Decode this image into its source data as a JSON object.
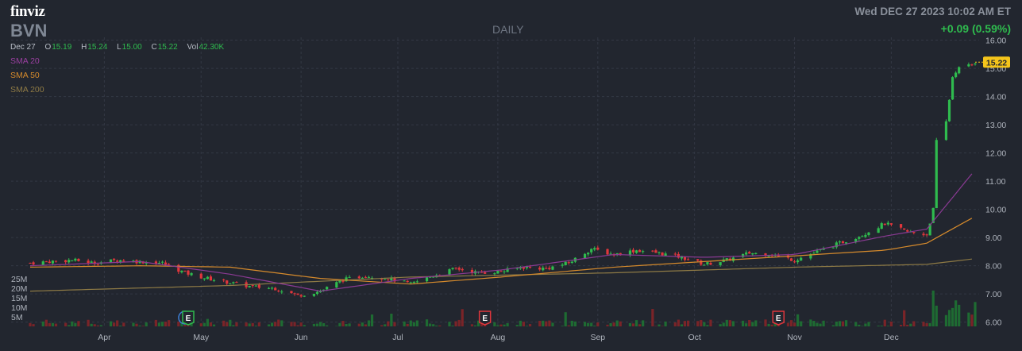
{
  "header": {
    "logo": "finviz",
    "ticker": "BVN",
    "timeframe": "DAILY",
    "datetime": "Wed DEC 27 2023 10:02 AM ET",
    "change": "+0.09 (0.59%)"
  },
  "ohlc": {
    "date": "Dec 27",
    "open_label": "O",
    "open": "15.19",
    "high_label": "H",
    "high": "15.24",
    "low_label": "L",
    "low": "15.00",
    "close_label": "C",
    "close": "15.22",
    "vol_label": "Vol",
    "vol": "42.30K"
  },
  "legend": {
    "sma20": "SMA 20",
    "sma50": "SMA 50",
    "sma200": "SMA 200"
  },
  "colors": {
    "background": "#22262f",
    "up": "#2fbb4e",
    "down": "#e0363c",
    "sma20": "#8a3a93",
    "sma50": "#d58a2c",
    "sma200": "#8e7a45",
    "price_tag": "#f5c51b"
  },
  "chart_data": {
    "type": "candlestick",
    "ticker": "BVN",
    "timeframe": "DAILY",
    "last_price": 15.22,
    "last_price_label": "15.22",
    "y_ticks": [
      "16.00",
      "15.00",
      "14.00",
      "13.00",
      "12.00",
      "11.00",
      "10.00",
      "9.00",
      "8.00",
      "7.00",
      "6.00"
    ],
    "ylim": [
      5.85,
      16.1
    ],
    "volume_ticks": [
      "25M",
      "20M",
      "15M",
      "10M",
      "5M"
    ],
    "volume_max": 25000000,
    "x_ticks": [
      "Apr",
      "May",
      "Jun",
      "Jul",
      "Aug",
      "Sep",
      "Oct",
      "Nov",
      "Dec"
    ],
    "events": [
      {
        "type": "D",
        "date": "2023-04-26"
      },
      {
        "type": "E",
        "date": "2023-04-27"
      },
      {
        "type": "E",
        "date": "2023-07-28"
      },
      {
        "type": "E",
        "date": "2023-10-27"
      }
    ],
    "close_series": [
      {
        "date": "2023-03-09",
        "close": 8.1
      },
      {
        "date": "2023-03-15",
        "close": 8.15
      },
      {
        "date": "2023-03-22",
        "close": 8.2
      },
      {
        "date": "2023-03-29",
        "close": 8.1
      },
      {
        "date": "2023-04-05",
        "close": 8.2
      },
      {
        "date": "2023-04-12",
        "close": 8.15
      },
      {
        "date": "2023-04-19",
        "close": 8.1
      },
      {
        "date": "2023-04-26",
        "close": 7.75
      },
      {
        "date": "2023-05-03",
        "close": 7.55
      },
      {
        "date": "2023-05-10",
        "close": 7.4
      },
      {
        "date": "2023-05-17",
        "close": 7.25
      },
      {
        "date": "2023-05-24",
        "close": 7.2
      },
      {
        "date": "2023-05-31",
        "close": 6.95
      },
      {
        "date": "2023-06-07",
        "close": 7.1
      },
      {
        "date": "2023-06-14",
        "close": 7.5
      },
      {
        "date": "2023-06-21",
        "close": 7.65
      },
      {
        "date": "2023-06-28",
        "close": 7.55
      },
      {
        "date": "2023-07-05",
        "close": 7.35
      },
      {
        "date": "2023-07-12",
        "close": 7.65
      },
      {
        "date": "2023-07-19",
        "close": 7.9
      },
      {
        "date": "2023-07-26",
        "close": 7.75
      },
      {
        "date": "2023-08-02",
        "close": 7.8
      },
      {
        "date": "2023-08-09",
        "close": 7.95
      },
      {
        "date": "2023-08-16",
        "close": 7.9
      },
      {
        "date": "2023-08-23",
        "close": 8.1
      },
      {
        "date": "2023-08-30",
        "close": 8.6
      },
      {
        "date": "2023-09-06",
        "close": 8.4
      },
      {
        "date": "2023-09-13",
        "close": 8.55
      },
      {
        "date": "2023-09-20",
        "close": 8.45
      },
      {
        "date": "2023-09-27",
        "close": 8.3
      },
      {
        "date": "2023-10-04",
        "close": 8.05
      },
      {
        "date": "2023-10-11",
        "close": 8.2
      },
      {
        "date": "2023-10-18",
        "close": 8.45
      },
      {
        "date": "2023-10-25",
        "close": 8.4
      },
      {
        "date": "2023-11-01",
        "close": 8.2
      },
      {
        "date": "2023-11-08",
        "close": 8.5
      },
      {
        "date": "2023-11-15",
        "close": 8.8
      },
      {
        "date": "2023-11-22",
        "close": 9.1
      },
      {
        "date": "2023-11-29",
        "close": 9.5
      },
      {
        "date": "2023-12-06",
        "close": 9.2
      },
      {
        "date": "2023-12-12",
        "close": 9.1
      },
      {
        "date": "2023-12-14",
        "close": 10.0
      },
      {
        "date": "2023-12-15",
        "close": 12.4
      },
      {
        "date": "2023-12-18",
        "close": 13.1
      },
      {
        "date": "2023-12-19",
        "close": 13.9
      },
      {
        "date": "2023-12-20",
        "close": 14.7
      },
      {
        "date": "2023-12-21",
        "close": 14.9
      },
      {
        "date": "2023-12-22",
        "close": 15.0
      },
      {
        "date": "2023-12-26",
        "close": 15.13
      },
      {
        "date": "2023-12-27",
        "close": 15.22
      }
    ],
    "sma20": [
      {
        "date": "2023-03-09",
        "value": 8.0
      },
      {
        "date": "2023-04-12",
        "value": 8.15
      },
      {
        "date": "2023-05-10",
        "value": 7.7
      },
      {
        "date": "2023-06-07",
        "value": 7.1
      },
      {
        "date": "2023-07-05",
        "value": 7.55
      },
      {
        "date": "2023-08-02",
        "value": 7.85
      },
      {
        "date": "2023-09-06",
        "value": 8.4
      },
      {
        "date": "2023-10-04",
        "value": 8.3
      },
      {
        "date": "2023-11-01",
        "value": 8.4
      },
      {
        "date": "2023-11-29",
        "value": 9.05
      },
      {
        "date": "2023-12-12",
        "value": 9.3
      },
      {
        "date": "2023-12-27",
        "value": 11.4
      }
    ],
    "sma50": [
      {
        "date": "2023-03-09",
        "value": 7.95
      },
      {
        "date": "2023-04-12",
        "value": 8.0
      },
      {
        "date": "2023-05-10",
        "value": 7.95
      },
      {
        "date": "2023-06-07",
        "value": 7.55
      },
      {
        "date": "2023-07-05",
        "value": 7.35
      },
      {
        "date": "2023-08-02",
        "value": 7.6
      },
      {
        "date": "2023-09-06",
        "value": 7.95
      },
      {
        "date": "2023-10-04",
        "value": 8.15
      },
      {
        "date": "2023-11-01",
        "value": 8.35
      },
      {
        "date": "2023-11-29",
        "value": 8.55
      },
      {
        "date": "2023-12-12",
        "value": 8.8
      },
      {
        "date": "2023-12-27",
        "value": 9.75
      }
    ],
    "sma200": [
      {
        "date": "2023-03-09",
        "value": 7.1
      },
      {
        "date": "2023-05-10",
        "value": 7.3
      },
      {
        "date": "2023-07-05",
        "value": 7.6
      },
      {
        "date": "2023-09-06",
        "value": 7.75
      },
      {
        "date": "2023-11-01",
        "value": 7.95
      },
      {
        "date": "2023-12-12",
        "value": 8.05
      },
      {
        "date": "2023-12-27",
        "value": 8.25
      }
    ]
  }
}
